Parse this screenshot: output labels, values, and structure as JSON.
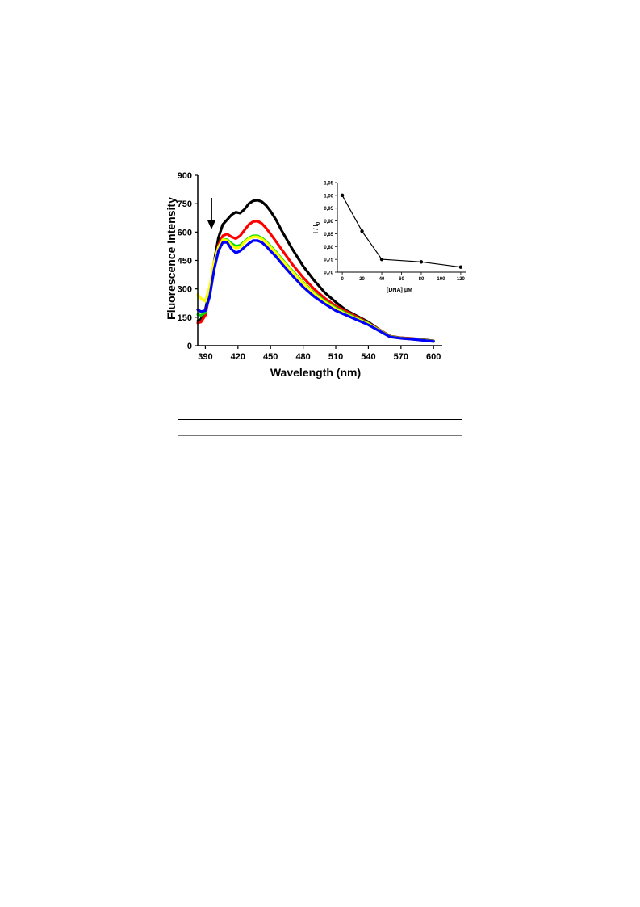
{
  "chart_data": [
    {
      "type": "line",
      "xlabel": "Wavelength (nm)",
      "ylabel": "Fluorescence Intensity",
      "xlim": [
        383,
        608
      ],
      "ylim": [
        0,
        900
      ],
      "xticks": [
        390,
        420,
        450,
        480,
        510,
        540,
        570,
        600
      ],
      "yticks": [
        0,
        150,
        300,
        450,
        600,
        750,
        900
      ],
      "grid": false,
      "annotation": "downward-arrow",
      "series": [
        {
          "color": "#000000",
          "x": [
            383,
            386,
            390,
            394,
            398,
            402,
            406,
            410,
            414,
            418,
            422,
            426,
            430,
            434,
            438,
            442,
            446,
            450,
            455,
            460,
            470,
            480,
            490,
            500,
            510,
            520,
            530,
            540,
            550,
            560,
            570,
            580,
            590,
            600
          ],
          "y": [
            130,
            140,
            190,
            300,
            440,
            570,
            640,
            665,
            690,
            705,
            700,
            720,
            750,
            765,
            768,
            760,
            740,
            710,
            665,
            610,
            510,
            420,
            345,
            280,
            230,
            185,
            155,
            125,
            85,
            50,
            42,
            38,
            32,
            25
          ]
        },
        {
          "color": "#ff0000",
          "x": [
            383,
            386,
            390,
            394,
            398,
            402,
            406,
            410,
            414,
            418,
            422,
            426,
            430,
            434,
            438,
            442,
            446,
            450,
            455,
            460,
            470,
            480,
            490,
            500,
            510,
            520,
            530,
            540,
            550,
            560,
            570,
            580,
            590,
            600
          ],
          "y": [
            120,
            125,
            160,
            280,
            420,
            530,
            580,
            590,
            575,
            565,
            580,
            610,
            640,
            655,
            658,
            645,
            620,
            590,
            550,
            510,
            430,
            360,
            300,
            250,
            210,
            180,
            150,
            120,
            85,
            50,
            42,
            37,
            31,
            24
          ]
        },
        {
          "color": "#00dd00",
          "x": [
            383,
            386,
            390,
            394,
            398,
            402,
            406,
            410,
            414,
            418,
            422,
            426,
            430,
            434,
            438,
            442,
            446,
            450,
            455,
            460,
            470,
            480,
            490,
            500,
            510,
            520,
            530,
            540,
            550,
            560,
            570,
            580,
            590,
            600
          ],
          "y": [
            165,
            160,
            175,
            280,
            430,
            520,
            560,
            560,
            540,
            525,
            530,
            550,
            570,
            580,
            580,
            568,
            550,
            525,
            495,
            460,
            395,
            335,
            280,
            235,
            200,
            170,
            143,
            118,
            82,
            48,
            40,
            35,
            30,
            23
          ]
        },
        {
          "color": "#ffff00",
          "x": [
            383,
            386,
            390,
            394,
            398,
            402,
            406,
            410,
            414,
            418,
            422,
            426,
            430,
            434,
            438,
            442,
            446,
            450,
            455,
            460,
            470,
            480,
            490,
            500,
            510,
            520,
            530,
            540,
            550,
            560,
            570,
            580,
            590,
            600
          ],
          "y": [
            270,
            250,
            235,
            310,
            440,
            520,
            560,
            555,
            530,
            515,
            520,
            545,
            565,
            575,
            575,
            563,
            545,
            520,
            490,
            455,
            390,
            330,
            275,
            230,
            195,
            165,
            140,
            115,
            80,
            47,
            39,
            34,
            29,
            22
          ]
        },
        {
          "color": "#0000ff",
          "x": [
            383,
            386,
            390,
            394,
            398,
            402,
            406,
            410,
            414,
            418,
            422,
            426,
            430,
            434,
            438,
            442,
            446,
            450,
            455,
            460,
            470,
            480,
            490,
            500,
            510,
            520,
            530,
            540,
            550,
            560,
            570,
            580,
            590,
            600
          ],
          "y": [
            190,
            180,
            185,
            260,
            400,
            500,
            545,
            545,
            510,
            490,
            500,
            520,
            540,
            555,
            555,
            545,
            525,
            500,
            470,
            435,
            370,
            310,
            260,
            220,
            185,
            160,
            135,
            110,
            78,
            46,
            39,
            34,
            28,
            22
          ]
        }
      ]
    },
    {
      "type": "line",
      "xlabel": "[DNA] μM",
      "ylabel": "I / I",
      "ylabel_sub": "0",
      "xlim": [
        -5,
        125
      ],
      "ylim": [
        0.7,
        1.05
      ],
      "xticks": [
        0,
        20,
        40,
        60,
        80,
        100,
        120
      ],
      "yticks": [
        0.7,
        0.75,
        0.8,
        0.85,
        0.9,
        0.95,
        1.0,
        1.05
      ],
      "yticklabels": [
        "0,70",
        "0,75",
        "0,80",
        "0,85",
        "0,90",
        "0,95",
        "1,00",
        "1,05"
      ],
      "grid": false,
      "series": [
        {
          "color": "#000000",
          "x": [
            0,
            20,
            40,
            80,
            120
          ],
          "y": [
            1.0,
            0.86,
            0.75,
            0.74,
            0.72
          ]
        }
      ]
    }
  ]
}
